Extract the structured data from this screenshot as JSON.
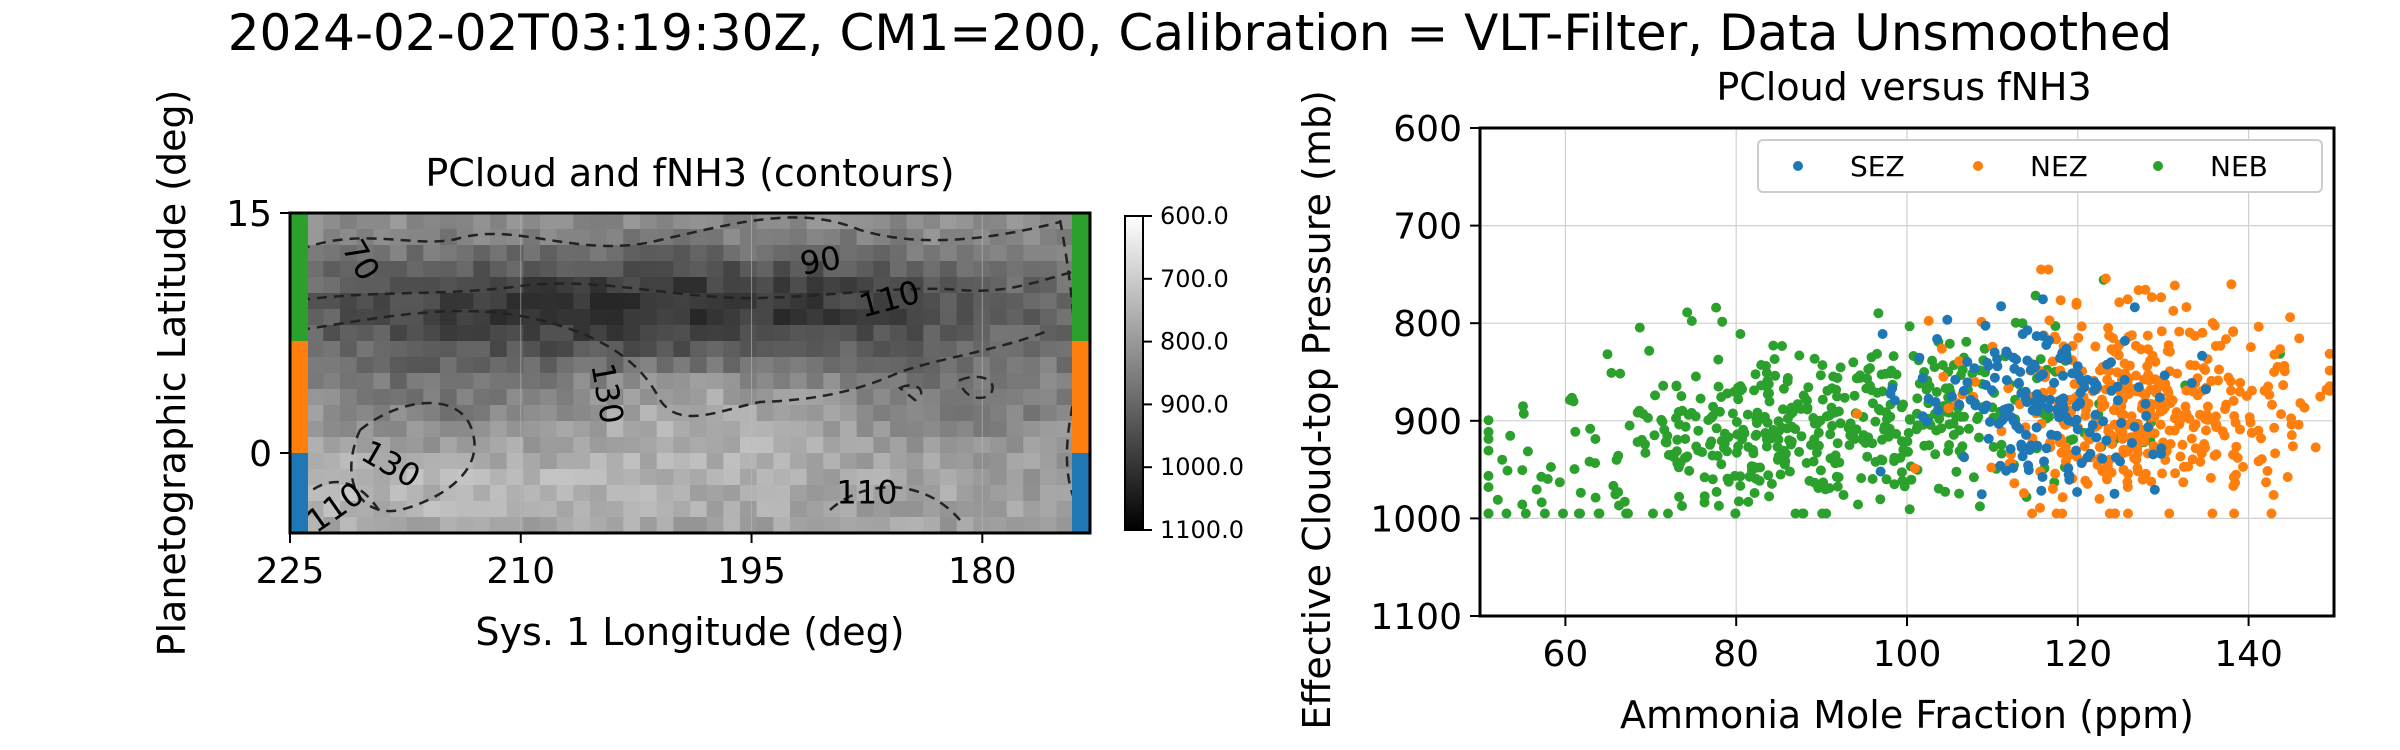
{
  "figure": {
    "suptitle": "2024-02-02T03:19:30Z, CM1=200, Calibration = VLT-Filter, Data Unsmoothed"
  },
  "colors": {
    "SEZ": "#1f77b4",
    "NEZ": "#ff7f0e",
    "NEB": "#2ca02c",
    "contour": "#222222",
    "grid": "#d0d0d0"
  },
  "chart_data": [
    {
      "type": "heatmap",
      "title": "PCloud and fNH3 (contours)",
      "xlabel": "Sys. 1 Longitude (deg)",
      "ylabel": "Planetographic Latitude (deg)",
      "xlim": [
        225,
        173
      ],
      "ylim": [
        -5,
        15
      ],
      "xticks": [
        225,
        210,
        195,
        180
      ],
      "yticks": [
        0,
        15
      ],
      "colorbar": {
        "min": 600,
        "max": 1100,
        "reversed": true,
        "ticks": [
          "600.0",
          "700.0",
          "800.0",
          "900.0",
          "1000.0",
          "1100.0"
        ]
      },
      "contour_labels": [
        {
          "text": "70",
          "lon": 220.5,
          "lat": 12.0,
          "angle": 60
        },
        {
          "text": "90",
          "lon": 190.5,
          "lat": 11.9,
          "angle": -10
        },
        {
          "text": "110",
          "lon": 186.0,
          "lat": 9.5,
          "angle": -15
        },
        {
          "text": "130",
          "lon": 204.5,
          "lat": 3.7,
          "angle": 80
        },
        {
          "text": "130",
          "lon": 218.5,
          "lat": -0.8,
          "angle": 30
        },
        {
          "text": "110",
          "lon": 222.0,
          "lat": -3.5,
          "angle": -35
        },
        {
          "text": "110",
          "lon": 187.5,
          "lat": -2.6,
          "angle": 0
        }
      ],
      "zone_bars": [
        {
          "zone": "SEZ",
          "lat_range": [
            -5,
            0
          ]
        },
        {
          "zone": "NEZ",
          "lat_range": [
            0,
            7
          ]
        },
        {
          "zone": "NEB",
          "lat_range": [
            7,
            15
          ]
        }
      ]
    },
    {
      "type": "scatter",
      "title": "PCloud versus fNH3",
      "xlabel": "Ammonia Mole Fraction (ppm)",
      "ylabel": "Effective Cloud-top Pressure (mb)",
      "xlim": [
        50,
        150
      ],
      "ylim": [
        1100,
        600
      ],
      "xticks": [
        60,
        80,
        100,
        120,
        140
      ],
      "yticks": [
        600,
        700,
        800,
        900,
        1000,
        1100
      ],
      "grid": true,
      "legend": {
        "placement": "top-right",
        "ncol": 3
      },
      "series": [
        {
          "name": "SEZ",
          "color": "#1f77b4",
          "n_points": 180,
          "x_center": 115,
          "x_spread": 7,
          "y_center": 880,
          "y_spread": 45
        },
        {
          "name": "NEZ",
          "color": "#ff7f0e",
          "n_points": 420,
          "x_center": 128,
          "x_spread": 9,
          "y_center": 885,
          "y_spread": 50
        },
        {
          "name": "NEB",
          "color": "#2ca02c",
          "n_points": 520,
          "x_center": 88,
          "x_spread": 17,
          "y_center": 905,
          "y_spread": 45
        }
      ]
    }
  ]
}
